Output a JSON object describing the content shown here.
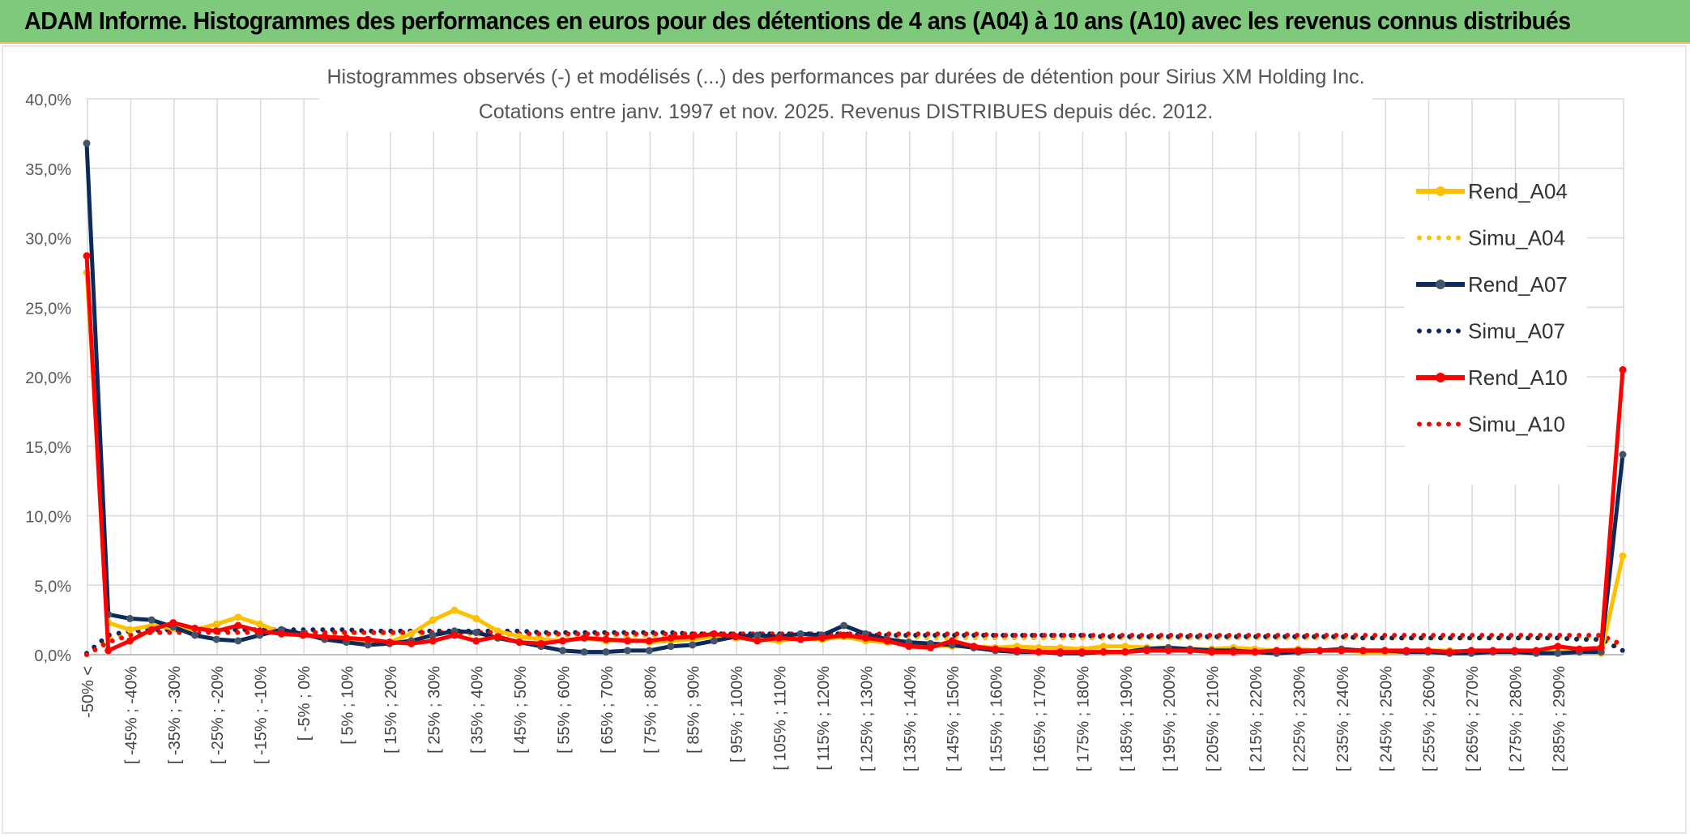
{
  "banner": {
    "title": "ADAM Informe. Histogrammes des performances en euros pour des détentions de 4 ans (A04) à 10 ans (A10) avec les revenus connus distribués",
    "color": "#7fc97c"
  },
  "chart_data": {
    "type": "line",
    "title": "Histogrammes observés (-) et modélisés (...) des performances par durées de détention pour Sirius XM Holding Inc.",
    "subtitle": "Cotations entre janv. 1997 et nov. 2025. Revenus DISTRIBUES depuis déc. 2012.",
    "xlabel": "",
    "ylabel": "",
    "ylim": [
      0,
      40
    ],
    "yticks": [
      "0,0%",
      "5,0%",
      "10,0%",
      "15,0%",
      "20,0%",
      "25,0%",
      "30,0%",
      "35,0%",
      "40,0%"
    ],
    "grid": true,
    "legend_position": "right",
    "xticklabels": [
      "-50% <",
      "[ -45% ; -40%",
      "[ -35% ; -30%",
      "[ -25% ; -20%",
      "[ -15% ; -10%",
      "[ -5% ; 0%",
      "[ 5% ; 10%",
      "[ 15% ; 20%",
      "[ 25% ; 30%",
      "[ 35% ; 40%",
      "[ 45% ; 50%",
      "[ 55% ; 60%",
      "[ 65% ; 70%",
      "[ 75% ; 80%",
      "[ 85% ; 90%",
      "[ 95% ; 100%",
      "[ 105% ; 110%",
      "[ 115% ; 120%",
      "[ 125% ; 130%",
      "[ 135% ; 140%",
      "[ 145% ; 150%",
      "[ 155% ; 160%",
      "[ 165% ; 170%",
      "[ 175% ; 180%",
      "[ 185% ; 190%",
      "[ 195% ; 200%",
      "[ 205% ; 210%",
      "[ 215% ; 220%",
      "[ 225% ; 230%",
      "[ 235% ; 240%",
      "[ 245% ; 250%",
      "[ 255% ; 260%",
      "[ 265% ; 270%",
      "[ 275% ; 280%",
      "[ 285% ; 290%"
    ],
    "series": [
      {
        "name": "Rend_A04",
        "style": "solid",
        "color": "#ffc000",
        "values": [
          27.5,
          2.3,
          1.8,
          2.1,
          1.9,
          1.8,
          2.2,
          2.7,
          2.2,
          1.6,
          1.5,
          1.2,
          1.1,
          1.0,
          0.9,
          1.5,
          2.5,
          3.2,
          2.6,
          1.7,
          1.3,
          1.1,
          1.0,
          1.2,
          1.0,
          1.1,
          0.9,
          1.0,
          1.1,
          1.3,
          1.2,
          1.1,
          1.0,
          1.2,
          1.1,
          1.3,
          1.0,
          0.9,
          0.8,
          0.7,
          0.6,
          0.6,
          0.5,
          0.6,
          0.5,
          0.5,
          0.4,
          0.6,
          0.6,
          0.5,
          0.5,
          0.4,
          0.4,
          0.5,
          0.4,
          0.3,
          0.4,
          0.3,
          0.3,
          0.2,
          0.2,
          0.2,
          0.3,
          0.3,
          0.2,
          0.2,
          0.2,
          0.2,
          0.2,
          0.2,
          0.1,
          7.1
        ]
      },
      {
        "name": "Simu_A04",
        "style": "dotted",
        "color": "#ffc000",
        "values": [
          0.0,
          1.1,
          1.5,
          1.6,
          1.7,
          1.7,
          1.7,
          1.7,
          1.7,
          1.7,
          1.6,
          1.6,
          1.6,
          1.6,
          1.5,
          1.5,
          1.5,
          1.5,
          1.5,
          1.5,
          1.4,
          1.4,
          1.4,
          1.4,
          1.4,
          1.4,
          1.4,
          1.3,
          1.3,
          1.3,
          1.3,
          1.3,
          1.3,
          1.3,
          1.3,
          1.3,
          1.3,
          1.3,
          1.3,
          1.2,
          1.2,
          1.2,
          1.2,
          1.2,
          1.2,
          1.2,
          1.2,
          1.2,
          1.2,
          1.2,
          1.2,
          1.2,
          1.2,
          1.2,
          1.2,
          1.2,
          1.2,
          1.2,
          1.2,
          1.2,
          1.2,
          1.2,
          1.2,
          1.2,
          1.2,
          1.2,
          1.2,
          1.2,
          1.2,
          1.2,
          1.2,
          0.4
        ]
      },
      {
        "name": "Rend_A07",
        "style": "solid",
        "color": "#0d2a5c",
        "values": [
          36.8,
          2.9,
          2.6,
          2.5,
          2.0,
          1.4,
          1.1,
          1.0,
          1.4,
          1.8,
          1.5,
          1.1,
          0.9,
          0.7,
          0.8,
          1.0,
          1.4,
          1.7,
          1.6,
          1.2,
          0.9,
          0.6,
          0.3,
          0.2,
          0.2,
          0.3,
          0.3,
          0.6,
          0.7,
          1.0,
          1.3,
          1.4,
          1.3,
          1.5,
          1.4,
          2.1,
          1.5,
          1.1,
          0.9,
          0.8,
          0.7,
          0.5,
          0.3,
          0.2,
          0.2,
          0.1,
          0.1,
          0.2,
          0.2,
          0.4,
          0.5,
          0.4,
          0.3,
          0.3,
          0.2,
          0.1,
          0.2,
          0.3,
          0.4,
          0.3,
          0.3,
          0.2,
          0.2,
          0.1,
          0.1,
          0.2,
          0.2,
          0.1,
          0.1,
          0.2,
          0.2,
          14.4
        ]
      },
      {
        "name": "Simu_A07",
        "style": "dotted",
        "color": "#0d2a5c",
        "values": [
          0.1,
          1.4,
          1.7,
          1.8,
          1.8,
          1.8,
          1.8,
          1.8,
          1.8,
          1.8,
          1.8,
          1.8,
          1.8,
          1.7,
          1.7,
          1.7,
          1.7,
          1.7,
          1.7,
          1.7,
          1.7,
          1.6,
          1.6,
          1.6,
          1.6,
          1.6,
          1.6,
          1.6,
          1.5,
          1.5,
          1.5,
          1.5,
          1.5,
          1.5,
          1.5,
          1.5,
          1.4,
          1.4,
          1.4,
          1.4,
          1.4,
          1.4,
          1.4,
          1.4,
          1.4,
          1.4,
          1.4,
          1.3,
          1.3,
          1.3,
          1.3,
          1.3,
          1.3,
          1.3,
          1.3,
          1.3,
          1.3,
          1.3,
          1.3,
          1.2,
          1.2,
          1.2,
          1.2,
          1.2,
          1.2,
          1.2,
          1.2,
          1.2,
          1.2,
          1.1,
          1.1,
          0.3
        ]
      },
      {
        "name": "Rend_A10",
        "style": "solid",
        "color": "#ff0000",
        "values": [
          28.7,
          0.3,
          1.0,
          1.8,
          2.3,
          1.9,
          1.7,
          2.1,
          1.7,
          1.5,
          1.4,
          1.3,
          1.2,
          1.1,
          0.9,
          0.8,
          1.0,
          1.4,
          1.0,
          1.3,
          0.9,
          0.8,
          1.0,
          1.2,
          1.1,
          1.0,
          1.0,
          1.2,
          1.3,
          1.5,
          1.3,
          1.0,
          1.2,
          1.1,
          1.2,
          1.4,
          1.2,
          1.0,
          0.6,
          0.5,
          1.0,
          0.6,
          0.4,
          0.3,
          0.2,
          0.2,
          0.2,
          0.2,
          0.2,
          0.3,
          0.3,
          0.3,
          0.2,
          0.2,
          0.2,
          0.3,
          0.3,
          0.3,
          0.3,
          0.3,
          0.3,
          0.3,
          0.3,
          0.2,
          0.3,
          0.3,
          0.3,
          0.3,
          0.6,
          0.4,
          0.5,
          20.5
        ]
      },
      {
        "name": "Simu_A10",
        "style": "dotted",
        "color": "#ff0000",
        "values": [
          0.0,
          0.9,
          1.4,
          1.6,
          1.6,
          1.6,
          1.6,
          1.6,
          1.6,
          1.6,
          1.6,
          1.6,
          1.6,
          1.6,
          1.6,
          1.6,
          1.6,
          1.6,
          1.6,
          1.6,
          1.5,
          1.5,
          1.5,
          1.5,
          1.5,
          1.5,
          1.5,
          1.5,
          1.5,
          1.5,
          1.5,
          1.5,
          1.5,
          1.5,
          1.5,
          1.5,
          1.5,
          1.5,
          1.5,
          1.5,
          1.5,
          1.5,
          1.4,
          1.4,
          1.4,
          1.4,
          1.4,
          1.4,
          1.4,
          1.4,
          1.4,
          1.4,
          1.4,
          1.4,
          1.4,
          1.4,
          1.4,
          1.4,
          1.4,
          1.4,
          1.4,
          1.4,
          1.4,
          1.4,
          1.4,
          1.4,
          1.4,
          1.4,
          1.4,
          1.4,
          1.4,
          0.7
        ]
      }
    ]
  }
}
